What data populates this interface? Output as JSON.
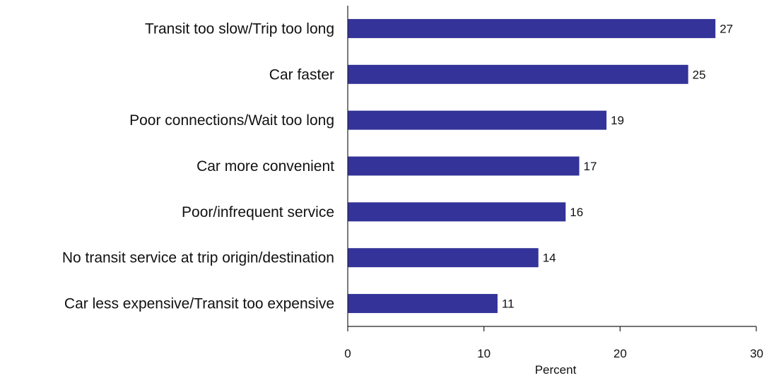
{
  "chart_data": {
    "type": "bar",
    "orientation": "horizontal",
    "categories": [
      "Transit too slow/Trip too long",
      "Car faster",
      "Poor connections/Wait too long",
      "Car more convenient",
      "Poor/infrequent service",
      "No transit service at trip origin/destination",
      "Car less expensive/Transit too expensive"
    ],
    "values": [
      27,
      25,
      19,
      17,
      16,
      14,
      11
    ],
    "xlabel": "Percent",
    "ylabel": "",
    "xlim": [
      0,
      30
    ],
    "xticks": [
      "0",
      "10",
      "20",
      "30"
    ],
    "grid": false,
    "bar_color": "#333399"
  }
}
